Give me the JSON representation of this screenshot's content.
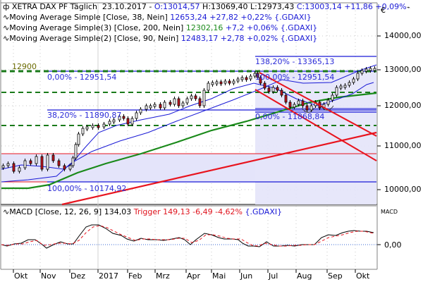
{
  "header": {
    "instrument": "XETRA DAX PF Täglich",
    "date": "23.10.2017",
    "open_label": "O:13014,57",
    "high_label": "H:13069,40",
    "low_label": "L:12973,43",
    "close_label": "C:13003,14 +11,86 +0,09%",
    "currency_symbol": "€"
  },
  "legends": [
    {
      "name": "Moving Average Simple [Close, 38, Nein]",
      "value": "12653,24 +27,82 +0,22% {.GDAXI}"
    },
    {
      "name": "Moving Average Simple(3) [Close, 200, Nein]",
      "value_main": "12302,16",
      "value_rest": " +7,2 +0,06% {.GDAXI}"
    },
    {
      "name": "Moving Average Simple(2) [Close, 90, Nein]",
      "value": "12483,17 +2,78 +0,02% {.GDAXI}"
    }
  ],
  "annotations": {
    "level_12900": "12900",
    "fib_top_0": "0,00% - 12951,54",
    "fib_382": "38,20% - 11890,87",
    "fib_100_bottom": "100,00% - 10174,92",
    "fib_1382": "138,20% - 13365,13",
    "fib_100_mid": "100,00% - 12951,54",
    "fib_0_low": "0,00% - 11868,84"
  },
  "macd": {
    "label": "MACD [Close, 12, 26, 9]",
    "value": "134,03",
    "trigger": "Trigger 149,13 -6,49 -4,62%",
    "symbol": "{.GDAXI}",
    "panel_title": "MACD",
    "zero_label": "0,00"
  },
  "colors": {
    "ma38": "#1a1ad6",
    "ma200": "#1a8a1a",
    "ma90": "#1a1ad6",
    "trend_red": "#e8141e",
    "fib_blue": "#1a1ad6",
    "dash_green": "#1a7a1a",
    "zone_fill": "#e4e4fa",
    "candle_up": "#ffffff",
    "candle_down": "#c8141e"
  },
  "chart_data": [
    {
      "type": "line",
      "title": "XETRA DAX PF Täglich",
      "xlabel": "",
      "ylabel": "€",
      "x_ticks": [
        "Okt",
        "Nov",
        "Dez",
        "2017",
        "Feb",
        "Mrz",
        "Apr",
        "Mai",
        "Jun",
        "Jul",
        "Aug",
        "Sep",
        "Okt"
      ],
      "y_ticks": [
        10000,
        11000,
        12000,
        13000,
        14000
      ],
      "ylim": [
        9700,
        14400
      ],
      "grid": true,
      "series": [
        {
          "name": "DAX Close",
          "x": [
            "2016-10-01",
            "2016-10-15",
            "2016-11-01",
            "2016-11-09",
            "2016-11-20",
            "2016-12-01",
            "2016-12-08",
            "2016-12-20",
            "2017-01-10",
            "2017-01-25",
            "2017-02-10",
            "2017-02-25",
            "2017-03-10",
            "2017-03-20",
            "2017-04-05",
            "2017-04-18",
            "2017-05-01",
            "2017-05-15",
            "2017-06-01",
            "2017-06-20",
            "2017-07-01",
            "2017-07-15",
            "2017-08-01",
            "2017-08-18",
            "2017-08-29",
            "2017-09-10",
            "2017-09-20",
            "2017-10-01",
            "2017-10-10",
            "2017-10-23"
          ],
          "values": [
            10500,
            10650,
            10400,
            10250,
            10700,
            10550,
            11000,
            11450,
            11550,
            11600,
            11650,
            11900,
            12000,
            12100,
            12250,
            12000,
            12500,
            12750,
            12700,
            12850,
            12350,
            12450,
            12200,
            12100,
            11900,
            12250,
            12550,
            12850,
            12950,
            13003
          ]
        },
        {
          "name": "MA 38",
          "values_note": "blue thin",
          "last": 12653.24
        },
        {
          "name": "MA 200",
          "values_note": "green",
          "last": 12302.16
        },
        {
          "name": "MA 90",
          "values_note": "blue thin",
          "last": 12483.17
        }
      ],
      "horizontal_levels": [
        {
          "label": "12900",
          "value": 12900,
          "style": "green-dashed"
        },
        {
          "label": "12951,54",
          "value": 12951.54,
          "style": "blue"
        },
        {
          "label": "138,20% - 13365,13",
          "value": 13365.13,
          "style": "blue"
        },
        {
          "label": "38,20% - 11890,87",
          "value": 11890.87,
          "style": "blue"
        },
        {
          "label": "0,00% - 11868,84",
          "value": 11868.84,
          "style": "blue"
        },
        {
          "label": "100,00% - 10174,92",
          "value": 10174.92,
          "style": "blue"
        },
        {
          "label": "green dashed",
          "value": 12400,
          "style": "green-dashed"
        },
        {
          "label": "green dashed",
          "value": 11500,
          "style": "green-dashed"
        }
      ]
    },
    {
      "type": "line",
      "title": "MACD [Close, 12, 26, 9]",
      "y_ticks": [
        0
      ],
      "series": [
        {
          "name": "MACD",
          "last": 134.03
        },
        {
          "name": "Trigger",
          "last": 149.13
        }
      ]
    }
  ]
}
